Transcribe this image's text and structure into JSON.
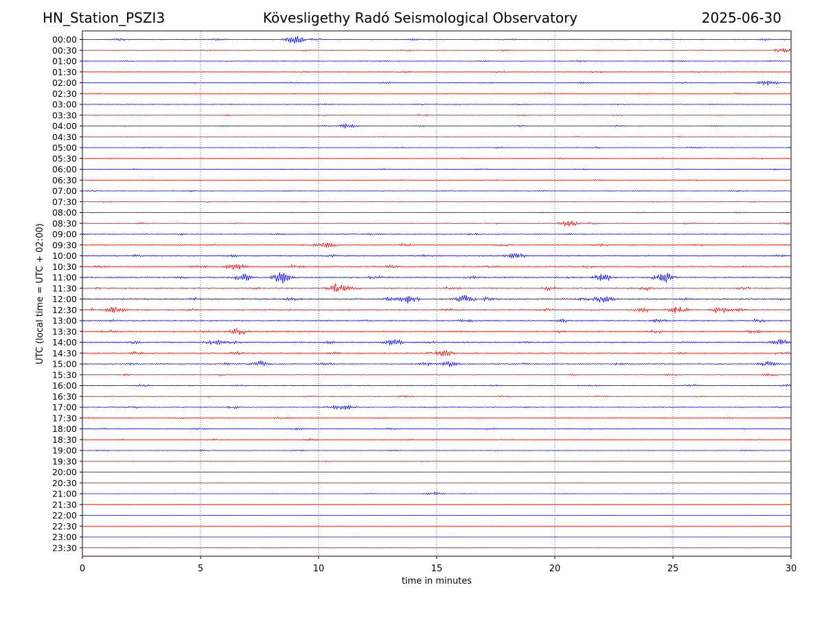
{
  "header": {
    "station": "HN_Station_PSZI3",
    "observatory": "Kövesligethy Radó Seismological Observatory",
    "date": "2025-06-30"
  },
  "chart_data": {
    "type": "line",
    "title": "Kövesligethy Radó Seismological Observatory",
    "xlabel": "time in minutes",
    "ylabel": "UTC (local time = UTC + 02:00)",
    "xlim": [
      0,
      30
    ],
    "xticks": [
      0,
      5,
      10,
      15,
      20,
      25,
      30
    ],
    "vgrid_at": [
      5,
      10,
      15,
      20,
      25
    ],
    "grid": "vertical dotted",
    "row_labels": [
      "00:00",
      "00:30",
      "01:00",
      "01:30",
      "02:00",
      "02:30",
      "03:00",
      "03:30",
      "04:00",
      "04:30",
      "05:00",
      "05:30",
      "06:00",
      "06:30",
      "07:00",
      "07:30",
      "08:00",
      "08:30",
      "09:00",
      "09:30",
      "10:00",
      "10:30",
      "11:00",
      "11:30",
      "12:00",
      "12:30",
      "13:00",
      "13:30",
      "14:00",
      "14:30",
      "15:00",
      "15:30",
      "16:00",
      "16:30",
      "17:00",
      "17:30",
      "18:00",
      "18:30",
      "19:00",
      "19:30",
      "20:00",
      "20:30",
      "21:00",
      "21:30",
      "22:00",
      "22:30",
      "23:00",
      "23:30"
    ],
    "colors": [
      "#0000ff",
      "#ff0000"
    ],
    "activity": [
      0.45,
      0.4,
      0.4,
      0.4,
      0.35,
      0.3,
      0.3,
      0.35,
      0.35,
      0.25,
      0.3,
      0.3,
      0.3,
      0.3,
      0.35,
      0.3,
      0.2,
      0.4,
      0.5,
      0.55,
      0.6,
      0.75,
      0.75,
      0.8,
      0.9,
      0.85,
      0.75,
      0.7,
      0.7,
      0.6,
      0.6,
      0.45,
      0.5,
      0.45,
      0.45,
      0.4,
      0.4,
      0.35,
      0.3,
      0.2,
      0.1,
      0.08,
      0.15,
      0.05,
      0.05,
      0.05,
      0.05,
      0.05
    ],
    "events": [
      {
        "row": 0,
        "t": 9.0,
        "a": 1.0
      },
      {
        "row": 1,
        "t": 29.7,
        "a": 0.6
      },
      {
        "row": 4,
        "t": 29.0,
        "a": 0.5
      },
      {
        "row": 8,
        "t": 11.2,
        "a": 0.5
      },
      {
        "row": 17,
        "t": 20.6,
        "a": 0.7
      },
      {
        "row": 19,
        "t": 10.3,
        "a": 0.7
      },
      {
        "row": 20,
        "t": 18.3,
        "a": 0.5
      },
      {
        "row": 21,
        "t": 6.5,
        "a": 0.7
      },
      {
        "row": 22,
        "t": 8.5,
        "a": 1.0
      },
      {
        "row": 22,
        "t": 24.6,
        "a": 1.2
      },
      {
        "row": 22,
        "t": 6.8,
        "a": 0.8
      },
      {
        "row": 22,
        "t": 22.0,
        "a": 0.8
      },
      {
        "row": 23,
        "t": 10.8,
        "a": 1.2
      },
      {
        "row": 24,
        "t": 13.8,
        "a": 0.9
      },
      {
        "row": 24,
        "t": 16.2,
        "a": 0.9
      },
      {
        "row": 24,
        "t": 22.0,
        "a": 0.8
      },
      {
        "row": 25,
        "t": 25.2,
        "a": 0.8
      },
      {
        "row": 25,
        "t": 27.0,
        "a": 0.7
      },
      {
        "row": 25,
        "t": 1.4,
        "a": 0.7
      },
      {
        "row": 27,
        "t": 6.6,
        "a": 0.8
      },
      {
        "row": 28,
        "t": 5.6,
        "a": 0.6
      },
      {
        "row": 28,
        "t": 13.2,
        "a": 0.7
      },
      {
        "row": 28,
        "t": 29.5,
        "a": 0.6
      },
      {
        "row": 29,
        "t": 15.3,
        "a": 0.7
      },
      {
        "row": 30,
        "t": 7.5,
        "a": 0.7
      },
      {
        "row": 30,
        "t": 15.5,
        "a": 0.6
      },
      {
        "row": 30,
        "t": 29.0,
        "a": 0.5
      },
      {
        "row": 34,
        "t": 11.1,
        "a": 0.6
      },
      {
        "row": 42,
        "t": 14.9,
        "a": 0.4
      }
    ]
  }
}
